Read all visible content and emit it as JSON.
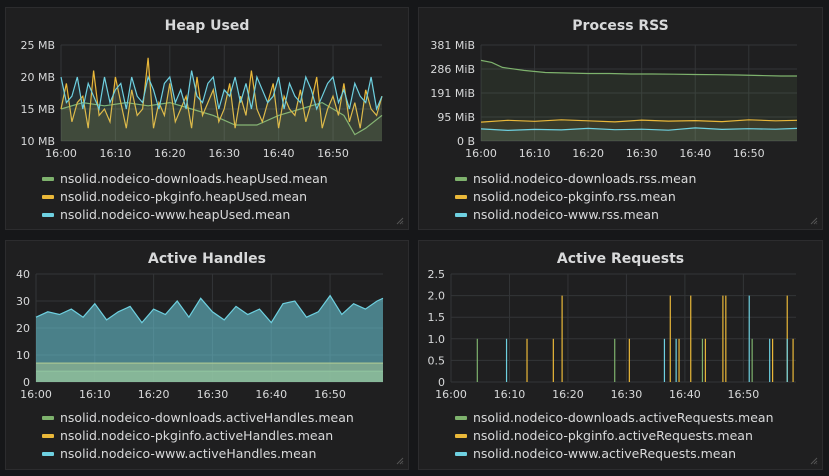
{
  "colors": {
    "green": "#7eb26d",
    "yellow": "#eab839",
    "blue": "#6ed0e0",
    "grid": "#333537",
    "bg": "#1f1f20"
  },
  "panels": [
    {
      "id": "heap",
      "title": "Heap Used",
      "legend": [
        "nsolid.nodeico-downloads.heapUsed.mean",
        "nsolid.nodeico-pkginfo.heapUsed.mean",
        "nsolid.nodeico-www.heapUsed.mean"
      ]
    },
    {
      "id": "rss",
      "title": "Process RSS",
      "legend": [
        "nsolid.nodeico-downloads.rss.mean",
        "nsolid.nodeico-pkginfo.rss.mean",
        "nsolid.nodeico-www.rss.mean"
      ]
    },
    {
      "id": "handles",
      "title": "Active Handles",
      "legend": [
        "nsolid.nodeico-downloads.activeHandles.mean",
        "nsolid.nodeico-pkginfo.activeHandles.mean",
        "nsolid.nodeico-www.activeHandles.mean"
      ]
    },
    {
      "id": "requests",
      "title": "Active Requests",
      "legend": [
        "nsolid.nodeico-downloads.activeRequests.mean",
        "nsolid.nodeico-pkginfo.activeRequests.mean",
        "nsolid.nodeico-www.activeRequests.mean"
      ]
    }
  ],
  "chart_data": [
    {
      "type": "line",
      "title": "Heap Used",
      "xticks": [
        "16:00",
        "16:10",
        "16:20",
        "16:30",
        "16:40",
        "16:50"
      ],
      "yticks": [
        "10 MB",
        "15 MB",
        "20 MB",
        "25 MB"
      ],
      "ylim": [
        10,
        25
      ],
      "xlim": [
        0,
        59
      ],
      "series": [
        {
          "name": "nsolid.nodeico-downloads.heapUsed.mean",
          "color": "#7eb26d",
          "x": [
            0,
            4,
            8,
            12,
            16,
            20,
            24,
            28,
            32,
            36,
            40,
            44,
            48,
            52,
            54,
            56,
            59
          ],
          "y": [
            15,
            16,
            15.5,
            16,
            15.5,
            16,
            15,
            14,
            12.5,
            12.5,
            14,
            15,
            16,
            14,
            11,
            12,
            14
          ]
        },
        {
          "name": "nsolid.nodeico-pkginfo.heapUsed.mean",
          "color": "#eab839",
          "x": [
            0,
            1,
            2,
            3,
            4,
            5,
            6,
            7,
            8,
            9,
            10,
            11,
            12,
            13,
            14,
            15,
            16,
            17,
            18,
            19,
            20,
            21,
            22,
            23,
            24,
            25,
            26,
            27,
            28,
            29,
            30,
            31,
            32,
            33,
            34,
            35,
            36,
            37,
            38,
            39,
            40,
            41,
            42,
            43,
            44,
            45,
            46,
            47,
            48,
            49,
            50,
            51,
            52,
            53,
            54,
            55,
            56,
            57,
            58,
            59
          ],
          "y": [
            15,
            19,
            13,
            16,
            17,
            12,
            21,
            14,
            15,
            13,
            20,
            16,
            12,
            18,
            14,
            15,
            23,
            12,
            16,
            14,
            19,
            13,
            15,
            17,
            12,
            20,
            14,
            16,
            18,
            13,
            15,
            19,
            12,
            17,
            14,
            21,
            15,
            13,
            16,
            19,
            12,
            17,
            15,
            14,
            18,
            13,
            16,
            20,
            12,
            15,
            17,
            14,
            19,
            13,
            16,
            12,
            18,
            15,
            14,
            17
          ]
        },
        {
          "name": "nsolid.nodeico-www.heapUsed.mean",
          "color": "#6ed0e0",
          "x": [
            0,
            1,
            2,
            3,
            4,
            5,
            6,
            7,
            8,
            9,
            10,
            11,
            12,
            13,
            14,
            15,
            16,
            17,
            18,
            19,
            20,
            21,
            22,
            23,
            24,
            25,
            26,
            27,
            28,
            29,
            30,
            31,
            32,
            33,
            34,
            35,
            36,
            37,
            38,
            39,
            40,
            41,
            42,
            43,
            44,
            45,
            46,
            47,
            48,
            49,
            50,
            51,
            52,
            53,
            54,
            55,
            56,
            57,
            58,
            59
          ],
          "y": [
            20,
            16,
            17,
            20,
            15,
            19,
            17,
            15,
            20,
            16,
            18,
            19,
            15,
            20,
            17,
            16,
            20,
            18,
            15,
            19,
            20,
            16,
            18,
            15,
            21,
            17,
            16,
            19,
            20,
            15,
            18,
            17,
            20,
            16,
            19,
            15,
            20,
            18,
            16,
            17,
            20,
            15,
            19,
            17,
            16,
            20,
            18,
            15,
            17,
            19,
            20,
            16,
            18,
            15,
            19,
            17,
            16,
            20,
            15,
            17
          ]
        }
      ]
    },
    {
      "type": "area",
      "title": "Process RSS",
      "xticks": [
        "16:00",
        "16:10",
        "16:20",
        "16:30",
        "16:40",
        "16:50"
      ],
      "yticks": [
        "0 B",
        "95 MiB",
        "191 MiB",
        "286 MiB",
        "381 MiB"
      ],
      "ylim": [
        0,
        381
      ],
      "xlim": [
        0,
        59
      ],
      "series": [
        {
          "name": "nsolid.nodeico-downloads.rss.mean",
          "color": "#7eb26d",
          "x": [
            0,
            2,
            4,
            8,
            12,
            16,
            20,
            24,
            28,
            32,
            36,
            40,
            44,
            48,
            52,
            56,
            59
          ],
          "y": [
            320,
            312,
            292,
            280,
            272,
            270,
            268,
            268,
            266,
            266,
            265,
            264,
            263,
            262,
            260,
            258,
            258
          ]
        },
        {
          "name": "nsolid.nodeico-pkginfo.rss.mean",
          "color": "#eab839",
          "x": [
            0,
            5,
            10,
            15,
            20,
            25,
            30,
            35,
            40,
            45,
            50,
            55,
            59
          ],
          "y": [
            75,
            82,
            78,
            84,
            80,
            76,
            83,
            79,
            81,
            77,
            84,
            80,
            82
          ]
        },
        {
          "name": "nsolid.nodeico-www.rss.mean",
          "color": "#6ed0e0",
          "x": [
            0,
            5,
            10,
            15,
            20,
            25,
            30,
            35,
            40,
            45,
            50,
            55,
            59
          ],
          "y": [
            48,
            42,
            46,
            44,
            50,
            45,
            47,
            43,
            52,
            46,
            49,
            47,
            50
          ]
        }
      ]
    },
    {
      "type": "area",
      "title": "Active Handles",
      "xticks": [
        "16:00",
        "16:10",
        "16:20",
        "16:30",
        "16:40",
        "16:50"
      ],
      "yticks": [
        "0",
        "10",
        "20",
        "30",
        "40"
      ],
      "ylim": [
        0,
        40
      ],
      "xlim": [
        0,
        59
      ],
      "series": [
        {
          "name": "nsolid.nodeico-downloads.activeHandles.mean",
          "color": "#7eb26d",
          "x": [
            0,
            59
          ],
          "y": [
            4,
            4
          ]
        },
        {
          "name": "nsolid.nodeico-pkginfo.activeHandles.mean",
          "color": "#eab839",
          "x": [
            0,
            59
          ],
          "y": [
            7,
            7
          ]
        },
        {
          "name": "nsolid.nodeico-www.activeHandles.mean",
          "color": "#6ed0e0",
          "x": [
            0,
            2,
            4,
            6,
            8,
            10,
            12,
            14,
            16,
            18,
            20,
            22,
            24,
            26,
            28,
            30,
            32,
            34,
            36,
            38,
            40,
            42,
            44,
            46,
            48,
            50,
            52,
            54,
            56,
            58,
            59
          ],
          "y": [
            24,
            26,
            25,
            27,
            24,
            29,
            23,
            26,
            28,
            22,
            27,
            25,
            30,
            24,
            31,
            26,
            23,
            28,
            25,
            27,
            22,
            29,
            30,
            24,
            26,
            32,
            25,
            29,
            27,
            30,
            31
          ]
        }
      ]
    },
    {
      "type": "line",
      "title": "Active Requests",
      "xticks": [
        "16:00",
        "16:10",
        "16:20",
        "16:30",
        "16:40",
        "16:50"
      ],
      "yticks": [
        "0",
        "0.5",
        "1.0",
        "1.5",
        "2.0",
        "2.5"
      ],
      "ylim": [
        0,
        2.5
      ],
      "xlim": [
        0,
        59
      ],
      "series": [
        {
          "name": "nsolid.nodeico-downloads.activeRequests.mean",
          "color": "#7eb26d",
          "spikes": [
            [
              4.5,
              1
            ],
            [
              28,
              1
            ],
            [
              43,
              1
            ],
            [
              51.5,
              1
            ]
          ]
        },
        {
          "name": "nsolid.nodeico-pkginfo.activeRequests.mean",
          "color": "#eab839",
          "spikes": [
            [
              13,
              1
            ],
            [
              17.5,
              1
            ],
            [
              19,
              2
            ],
            [
              30.5,
              1
            ],
            [
              37.5,
              2
            ],
            [
              39,
              1
            ],
            [
              41,
              2
            ],
            [
              43.5,
              1
            ],
            [
              46.5,
              2
            ],
            [
              47,
              2
            ],
            [
              55,
              1
            ],
            [
              57.5,
              2
            ],
            [
              58.5,
              1
            ]
          ]
        },
        {
          "name": "nsolid.nodeico-www.activeRequests.mean",
          "color": "#6ed0e0",
          "spikes": [
            [
              9.5,
              1
            ],
            [
              36.5,
              1
            ],
            [
              38.5,
              1
            ],
            [
              51,
              2
            ],
            [
              54.5,
              1
            ],
            [
              57.5,
              1
            ]
          ]
        }
      ]
    }
  ]
}
